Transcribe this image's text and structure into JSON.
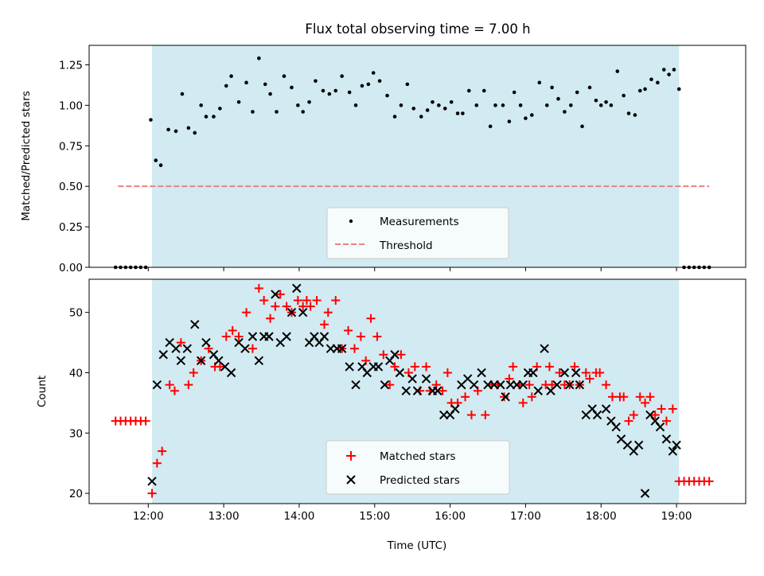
{
  "title": "Flux total observing time = 7.00 h",
  "colors": {
    "shade": "#ADD8E6",
    "measure": "#000000",
    "threshold": "#F08080",
    "matched": "#FF0000",
    "predicted": "#000000"
  },
  "chart_data": [
    {
      "type": "scatter",
      "ylabel": "Matched/Predicted stars",
      "ylim": [
        0,
        1.37
      ],
      "xlim": [
        11.2167,
        19.9167
      ],
      "yticks": [
        0.0,
        0.25,
        0.5,
        0.75,
        1.0,
        1.25
      ],
      "ytick_labels": [
        "0.00",
        "0.25",
        "0.50",
        "0.75",
        "1.00",
        "1.25"
      ],
      "shaded_x": [
        12.05,
        19.0333
      ],
      "threshold": {
        "value": 0.5,
        "x": [
          11.6,
          19.4333
        ]
      },
      "legend": {
        "position": "lower center",
        "entries": [
          "Measurements",
          "Threshold"
        ]
      },
      "series": [
        {
          "name": "Measurements",
          "x": [
            11.5667,
            11.6333,
            11.7,
            11.7667,
            11.8333,
            11.9,
            11.9667,
            12.0333,
            12.1,
            12.1667,
            12.2667,
            12.3667,
            12.45,
            12.5333,
            12.6167,
            12.7,
            12.7667,
            12.8667,
            12.95,
            13.0333,
            13.1,
            13.2,
            13.3,
            13.3833,
            13.4667,
            13.55,
            13.6167,
            13.7,
            13.8,
            13.9,
            13.9833,
            14.05,
            14.1333,
            14.2167,
            14.3167,
            14.4,
            14.4833,
            14.5667,
            14.6667,
            14.75,
            14.8333,
            14.9167,
            14.9833,
            15.0667,
            15.1667,
            15.2667,
            15.35,
            15.4333,
            15.5167,
            15.6167,
            15.7,
            15.7667,
            15.85,
            15.9333,
            16.0167,
            16.1,
            16.1667,
            16.25,
            16.35,
            16.45,
            16.5333,
            16.6,
            16.7,
            16.7833,
            16.85,
            16.9333,
            17.0,
            17.0833,
            17.1833,
            17.2833,
            17.35,
            17.4333,
            17.5167,
            17.6,
            17.6833,
            17.75,
            17.85,
            17.9333,
            18.0,
            18.0667,
            18.1333,
            18.2167,
            18.3,
            18.3667,
            18.45,
            18.5167,
            18.5833,
            18.6667,
            18.75,
            18.8333,
            18.9,
            18.9667,
            19.0333,
            19.1,
            19.1667,
            19.2333,
            19.3,
            19.3667,
            19.4333
          ],
          "y": [
            0.0,
            0.0,
            0.0,
            0.0,
            0.0,
            0.0,
            0.0,
            0.91,
            0.66,
            0.63,
            0.85,
            0.84,
            1.07,
            0.86,
            0.83,
            1.0,
            0.93,
            0.93,
            0.98,
            1.12,
            1.18,
            1.02,
            1.14,
            0.96,
            1.29,
            1.13,
            1.07,
            0.96,
            1.18,
            1.11,
            1.0,
            0.96,
            1.02,
            1.15,
            1.09,
            1.07,
            1.09,
            1.18,
            1.08,
            1.0,
            1.12,
            1.13,
            1.2,
            1.15,
            1.06,
            0.93,
            1.0,
            1.13,
            0.98,
            0.93,
            0.97,
            1.02,
            1.0,
            0.98,
            1.02,
            0.95,
            0.95,
            1.09,
            1.0,
            1.09,
            0.87,
            1.0,
            1.0,
            0.9,
            1.08,
            1.0,
            0.92,
            0.94,
            1.14,
            1.0,
            1.11,
            1.04,
            0.96,
            1.0,
            1.08,
            0.87,
            1.11,
            1.03,
            1.0,
            1.02,
            1.0,
            1.21,
            1.06,
            0.95,
            0.94,
            1.09,
            1.1,
            1.16,
            1.14,
            1.22,
            1.19,
            1.22,
            1.1,
            0.0,
            0.0,
            0.0,
            0.0,
            0.0,
            0.0
          ]
        }
      ]
    },
    {
      "type": "scatter",
      "xlabel": "Time (UTC)",
      "ylabel": "Count",
      "ylim": [
        18.3,
        55.5
      ],
      "xlim": [
        11.2167,
        19.9167
      ],
      "xticks": [
        12,
        13,
        14,
        15,
        16,
        17,
        18,
        19
      ],
      "xtick_labels": [
        "12:00",
        "13:00",
        "14:00",
        "15:00",
        "16:00",
        "17:00",
        "18:00",
        "19:00"
      ],
      "yticks": [
        20,
        30,
        40,
        50
      ],
      "ytick_labels": [
        "20",
        "30",
        "40",
        "50"
      ],
      "shaded_x": [
        12.05,
        19.0333
      ],
      "legend": {
        "position": "lower center",
        "entries": [
          "Matched stars",
          "Predicted stars"
        ]
      },
      "series": [
        {
          "name": "Matched stars",
          "marker": "+",
          "x": [
            11.5667,
            11.6333,
            11.7,
            11.7667,
            11.8333,
            11.9,
            11.9667,
            12.05,
            12.1167,
            12.1833,
            12.2833,
            12.35,
            12.4333,
            12.5333,
            12.6,
            12.7,
            12.8,
            12.8833,
            12.95,
            13.0333,
            13.1167,
            13.2,
            13.3,
            13.3833,
            13.4667,
            13.5333,
            13.6167,
            13.6833,
            13.75,
            13.8333,
            13.9,
            13.9833,
            14.05,
            14.1,
            14.15,
            14.2333,
            14.3333,
            14.3833,
            14.4833,
            14.5667,
            14.65,
            14.7333,
            14.8167,
            14.8833,
            14.95,
            15.0333,
            15.1167,
            15.2,
            15.2667,
            15.35,
            15.45,
            15.5333,
            15.6,
            15.6833,
            15.7333,
            15.8167,
            15.9,
            15.9667,
            16.0167,
            16.1,
            16.2,
            16.2833,
            16.3667,
            16.4667,
            16.55,
            16.6333,
            16.7167,
            16.7833,
            16.8333,
            16.9167,
            16.9667,
            17.05,
            17.0833,
            17.15,
            17.2667,
            17.3167,
            17.35,
            17.45,
            17.5167,
            17.5833,
            17.65,
            17.7167,
            17.8,
            17.85,
            17.9333,
            17.9833,
            18.0667,
            18.15,
            18.25,
            18.3,
            18.3667,
            18.4333,
            18.5167,
            18.5833,
            18.65,
            18.7167,
            18.8,
            18.8667,
            18.95,
            19.0333,
            19.1,
            19.1667,
            19.2333,
            19.3,
            19.3667,
            19.4333
          ],
          "y": [
            32,
            32,
            32,
            32,
            32,
            32,
            32,
            20,
            25,
            27,
            38,
            37,
            45,
            38,
            40,
            42,
            44,
            41,
            41,
            46,
            47,
            46,
            50,
            44,
            54,
            52,
            49,
            51,
            53,
            51,
            50,
            52,
            51,
            52,
            51,
            52,
            48,
            50,
            52,
            44,
            47,
            44,
            46,
            42,
            49,
            46,
            43,
            38,
            41,
            43,
            40,
            41,
            37,
            41,
            37,
            38,
            37,
            40,
            35,
            35,
            36,
            33,
            37,
            33,
            38,
            38,
            36,
            39,
            41,
            38,
            35,
            38,
            36,
            41,
            38,
            41,
            38,
            40,
            38,
            38,
            41,
            38,
            40,
            39,
            40,
            40,
            38,
            36,
            36,
            36,
            32,
            33,
            36,
            35,
            36,
            33,
            34,
            32,
            34,
            22,
            22,
            22,
            22,
            22,
            22,
            22
          ]
        },
        {
          "name": "Predicted stars",
          "marker": "x",
          "x": [
            12.05,
            12.1167,
            12.2,
            12.2833,
            12.3667,
            12.4333,
            12.5167,
            12.6167,
            12.7,
            12.7667,
            12.8667,
            12.9333,
            13.0167,
            13.1,
            13.2,
            13.2833,
            13.3833,
            13.4667,
            13.5333,
            13.6,
            13.6833,
            13.75,
            13.8333,
            13.9,
            13.9667,
            14.05,
            14.1333,
            14.2,
            14.2667,
            14.3333,
            14.4167,
            14.5,
            14.5667,
            14.6667,
            14.75,
            14.8333,
            14.9,
            14.9833,
            15.05,
            15.1333,
            15.2,
            15.2667,
            15.3333,
            15.4167,
            15.5,
            15.5667,
            15.6833,
            15.7667,
            15.8333,
            15.9167,
            16.0,
            16.0667,
            16.15,
            16.2333,
            16.3167,
            16.4167,
            16.5,
            16.5833,
            16.6667,
            16.7333,
            16.8,
            16.8833,
            16.9667,
            17.0333,
            17.1,
            17.1667,
            17.25,
            17.3333,
            17.4167,
            17.5167,
            17.5833,
            17.6667,
            17.7167,
            17.8,
            17.8833,
            17.95,
            18.0667,
            18.1333,
            18.2,
            18.2667,
            18.35,
            18.4333,
            18.5,
            18.5833,
            18.65,
            18.7167,
            18.7833,
            18.8667,
            18.95,
            19.0
          ],
          "y": [
            22,
            38,
            43,
            45,
            44,
            42,
            44,
            48,
            42,
            45,
            43,
            42,
            41,
            40,
            45,
            44,
            46,
            42,
            46,
            46,
            53,
            45,
            46,
            50,
            54,
            50,
            45,
            46,
            45,
            46,
            44,
            44,
            44,
            41,
            38,
            41,
            40,
            41,
            41,
            38,
            42,
            43,
            40,
            37,
            39,
            37,
            39,
            37,
            37,
            33,
            33,
            34,
            38,
            39,
            38,
            40,
            38,
            38,
            38,
            36,
            38,
            38,
            38,
            40,
            40,
            37,
            44,
            37,
            38,
            40,
            38,
            40,
            38,
            33,
            34,
            33,
            34,
            32,
            31,
            29,
            28,
            27,
            28,
            20,
            33,
            32,
            31,
            29,
            27,
            28
          ]
        }
      ]
    }
  ]
}
